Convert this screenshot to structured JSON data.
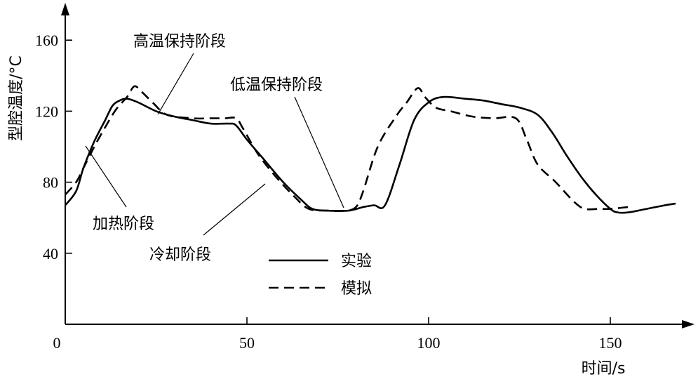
{
  "chart_data": {
    "type": "line",
    "title": "",
    "xlabel": "时间/s",
    "ylabel": "型腔温度/°C",
    "xlim": [
      0,
      170
    ],
    "ylim": [
      0,
      180
    ],
    "xticks": [
      0,
      50,
      100,
      150
    ],
    "yticks": [
      40,
      80,
      120,
      160
    ],
    "grid": false,
    "legend": {
      "position": "center-bottom"
    },
    "series": [
      {
        "name": "实验",
        "style": "solid",
        "points": [
          [
            0,
            67
          ],
          [
            3,
            75
          ],
          [
            5,
            88
          ],
          [
            8,
            103
          ],
          [
            11,
            115
          ],
          [
            13,
            123
          ],
          [
            15,
            126
          ],
          [
            17,
            127
          ],
          [
            20,
            125
          ],
          [
            25,
            120
          ],
          [
            30,
            117
          ],
          [
            35,
            115
          ],
          [
            40,
            113
          ],
          [
            45,
            113
          ],
          [
            47,
            112
          ],
          [
            50,
            104
          ],
          [
            55,
            92
          ],
          [
            60,
            80
          ],
          [
            65,
            70
          ],
          [
            68,
            65
          ],
          [
            72,
            64
          ],
          [
            78,
            64
          ],
          [
            82,
            66
          ],
          [
            85,
            67
          ],
          [
            88,
            67
          ],
          [
            92,
            90
          ],
          [
            96,
            115
          ],
          [
            100,
            125
          ],
          [
            104,
            128
          ],
          [
            110,
            127
          ],
          [
            115,
            126
          ],
          [
            120,
            124
          ],
          [
            125,
            122
          ],
          [
            130,
            118
          ],
          [
            134,
            108
          ],
          [
            138,
            95
          ],
          [
            142,
            83
          ],
          [
            146,
            73
          ],
          [
            150,
            65
          ],
          [
            152,
            63
          ],
          [
            155,
            63
          ],
          [
            160,
            65
          ],
          [
            165,
            67
          ],
          [
            168,
            68
          ]
        ]
      },
      {
        "name": "模拟",
        "style": "dashed",
        "points": [
          [
            0,
            73
          ],
          [
            3,
            80
          ],
          [
            5,
            88
          ],
          [
            8,
            100
          ],
          [
            11,
            111
          ],
          [
            14,
            121
          ],
          [
            17,
            128
          ],
          [
            19,
            134
          ],
          [
            21,
            131
          ],
          [
            24,
            125
          ],
          [
            28,
            118
          ],
          [
            35,
            116
          ],
          [
            40,
            116
          ],
          [
            44,
            116
          ],
          [
            47,
            116
          ],
          [
            49,
            110
          ],
          [
            53,
            96
          ],
          [
            58,
            83
          ],
          [
            63,
            72
          ],
          [
            67,
            65
          ],
          [
            72,
            64
          ],
          [
            77,
            64
          ],
          [
            80,
            66
          ],
          [
            82,
            75
          ],
          [
            86,
            100
          ],
          [
            91,
            117
          ],
          [
            94,
            125
          ],
          [
            97,
            133
          ],
          [
            99,
            128
          ],
          [
            102,
            122
          ],
          [
            106,
            120
          ],
          [
            112,
            117
          ],
          [
            118,
            116
          ],
          [
            124,
            116
          ],
          [
            127,
            104
          ],
          [
            130,
            90
          ],
          [
            135,
            80
          ],
          [
            140,
            69
          ],
          [
            143,
            65
          ],
          [
            147,
            65
          ],
          [
            150,
            65
          ],
          [
            155,
            66
          ]
        ]
      }
    ],
    "annotations": [
      {
        "text": "高温保持阶段"
      },
      {
        "text": "低温保持阶段"
      },
      {
        "text": "加热阶段"
      },
      {
        "text": "冷却阶段"
      }
    ],
    "legend_entries": [
      {
        "label": "实验",
        "style": "solid"
      },
      {
        "label": "模拟",
        "style": "dashed"
      }
    ]
  }
}
